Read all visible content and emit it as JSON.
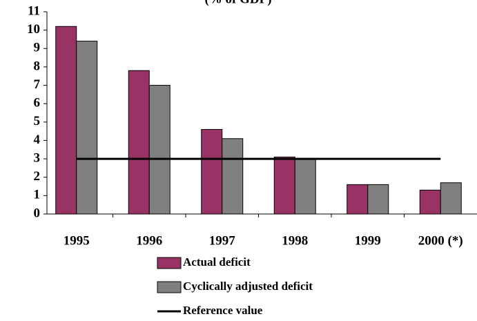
{
  "chart_data": {
    "type": "bar",
    "title": "(% of GDP)",
    "categories": [
      "1995",
      "1996",
      "1997",
      "1998",
      "1999",
      "2000 (*)"
    ],
    "series": [
      {
        "name": "Actual deficit",
        "color": "#993366",
        "values": [
          10.2,
          7.8,
          4.6,
          3.1,
          1.6,
          1.3
        ]
      },
      {
        "name": "Cyclically adjusted deficit",
        "color": "#808080",
        "values": [
          9.4,
          7.0,
          4.1,
          3.0,
          1.6,
          1.7
        ]
      },
      {
        "name": "Reference value",
        "color": "#000000",
        "type": "line",
        "values": [
          3,
          3,
          3,
          3,
          3,
          3
        ]
      }
    ],
    "ylim": [
      0,
      11
    ],
    "yticks": [
      0,
      1,
      2,
      3,
      4,
      5,
      6,
      7,
      8,
      9,
      10,
      11
    ],
    "grid": false
  }
}
